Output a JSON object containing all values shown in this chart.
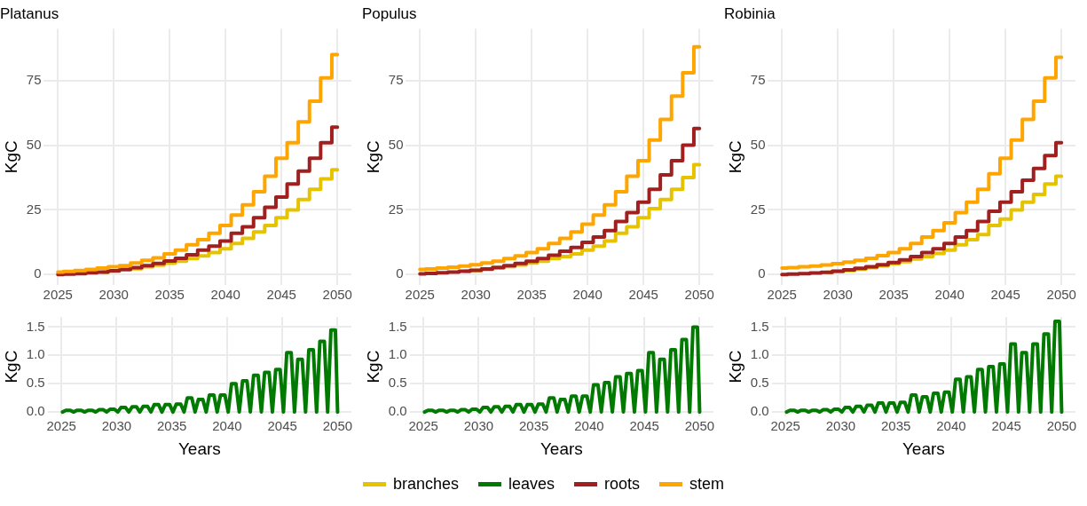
{
  "chart_data": [
    {
      "type": "step",
      "title": "Platanus",
      "ylabel": "KgC",
      "x": [
        2025,
        2026,
        2027,
        2028,
        2029,
        2030,
        2031,
        2032,
        2033,
        2034,
        2035,
        2036,
        2037,
        2038,
        2039,
        2040,
        2041,
        2042,
        2043,
        2044,
        2045,
        2046,
        2047,
        2048,
        2049,
        2050
      ],
      "xlim": [
        2023.75,
        2051.25
      ],
      "xticks": [
        2025,
        2030,
        2035,
        2040,
        2045,
        2050
      ],
      "ylim": [
        -4,
        95
      ],
      "yticks": [
        0,
        25,
        50,
        75
      ],
      "grid": true,
      "legend": "bottom",
      "series": [
        {
          "name": "branches",
          "color": "#e6c300",
          "values": [
            null,
            null,
            null,
            null,
            1,
            1.3,
            1.8,
            2.3,
            3,
            3.6,
            4.4,
            5.2,
            6.2,
            7.2,
            8.5,
            10,
            12,
            14,
            16.5,
            19,
            22,
            25,
            29,
            33,
            37,
            40.5
          ]
        },
        {
          "name": "roots",
          "color": "#a02020",
          "values": [
            0,
            0.2,
            0.4,
            0.7,
            1,
            1.5,
            2,
            2.7,
            3.5,
            4.3,
            5.3,
            6.3,
            7.7,
            9.5,
            11,
            13,
            16,
            18.5,
            22,
            26,
            30,
            35,
            40,
            45,
            51,
            57
          ]
        },
        {
          "name": "stem",
          "color": "#ffa500",
          "values": [
            1,
            1.2,
            1.6,
            2,
            2.5,
            3,
            3.5,
            4.5,
            5.5,
            6.5,
            8,
            9.5,
            11.5,
            13.5,
            16,
            19,
            23,
            27,
            32,
            38,
            45,
            51,
            59,
            67,
            76,
            85
          ]
        }
      ]
    },
    {
      "type": "step",
      "title": "Populus",
      "ylabel": "KgC",
      "x": [
        2025,
        2026,
        2027,
        2028,
        2029,
        2030,
        2031,
        2032,
        2033,
        2034,
        2035,
        2036,
        2037,
        2038,
        2039,
        2040,
        2041,
        2042,
        2043,
        2044,
        2045,
        2046,
        2047,
        2048,
        2049,
        2050
      ],
      "xlim": [
        2023.75,
        2051.25
      ],
      "xticks": [
        2025,
        2030,
        2035,
        2040,
        2045,
        2050
      ],
      "ylim": [
        -4,
        95
      ],
      "yticks": [
        0,
        25,
        50,
        75
      ],
      "grid": true,
      "legend": "bottom",
      "series": [
        {
          "name": "branches",
          "color": "#e6c300",
          "values": [
            null,
            null,
            null,
            null,
            1.3,
            1.6,
            2,
            2.5,
            3.1,
            3.7,
            4.5,
            5.2,
            6.2,
            7,
            8,
            9.5,
            11,
            13,
            16,
            18.5,
            22,
            25.5,
            29,
            33,
            37.5,
            42.5
          ]
        },
        {
          "name": "roots",
          "color": "#a02020",
          "values": [
            0.3,
            0.5,
            0.7,
            1,
            1.3,
            1.7,
            2.2,
            2.8,
            3.5,
            4.3,
            5.2,
            6.2,
            7.5,
            9,
            10.5,
            12.5,
            14.5,
            17,
            20.5,
            24,
            28,
            33,
            38.5,
            44,
            50,
            56.5
          ]
        },
        {
          "name": "stem",
          "color": "#ffa500",
          "values": [
            2,
            2.2,
            2.5,
            2.9,
            3.3,
            3.8,
            4.5,
            5.2,
            6.2,
            7.2,
            8.5,
            10,
            12,
            14,
            16.5,
            19.5,
            23,
            27,
            32,
            38,
            44,
            52,
            60,
            69,
            78,
            88
          ]
        }
      ]
    },
    {
      "type": "step",
      "title": "Robinia",
      "ylabel": "KgC",
      "x": [
        2025,
        2026,
        2027,
        2028,
        2029,
        2030,
        2031,
        2032,
        2033,
        2034,
        2035,
        2036,
        2037,
        2038,
        2039,
        2040,
        2041,
        2042,
        2043,
        2044,
        2045,
        2046,
        2047,
        2048,
        2049,
        2050
      ],
      "xlim": [
        2023.75,
        2051.25
      ],
      "xticks": [
        2025,
        2030,
        2035,
        2040,
        2045,
        2050
      ],
      "ylim": [
        -4,
        95
      ],
      "yticks": [
        0,
        25,
        50,
        75
      ],
      "grid": true,
      "legend": "bottom",
      "series": [
        {
          "name": "branches",
          "color": "#e6c300",
          "values": [
            null,
            null,
            null,
            null,
            0.9,
            1.2,
            1.6,
            2.1,
            2.7,
            3.4,
            4.2,
            5,
            6,
            7,
            8.2,
            9.5,
            11.5,
            13.5,
            15.5,
            19,
            21.5,
            25,
            28,
            31,
            35,
            38
          ]
        },
        {
          "name": "roots",
          "color": "#a02020",
          "values": [
            0,
            0.2,
            0.4,
            0.6,
            0.9,
            1.3,
            1.8,
            2.4,
            3,
            3.8,
            4.7,
            5.7,
            7,
            8.5,
            10,
            12,
            14.5,
            17,
            20.5,
            24.5,
            28,
            32,
            36.5,
            41,
            46,
            51
          ]
        },
        {
          "name": "stem",
          "color": "#ffa500",
          "values": [
            2.5,
            2.7,
            3,
            3.3,
            3.7,
            4.2,
            4.8,
            5.5,
            6.3,
            7.3,
            8.5,
            10,
            12,
            14.5,
            17,
            20,
            24,
            28,
            33,
            39,
            45,
            52,
            60,
            67,
            76,
            84
          ]
        }
      ]
    },
    {
      "type": "line",
      "xlabel": "Years",
      "ylabel": "KgC",
      "x": [
        2025.1,
        2025.4,
        2025.8,
        2026.1,
        2026.4,
        2026.8,
        2027.1,
        2027.4,
        2027.8,
        2028.1,
        2028.4,
        2028.8,
        2029.1,
        2029.4,
        2029.8,
        2030.1,
        2030.4,
        2030.8,
        2031.1,
        2031.4,
        2031.8,
        2032.1,
        2032.4,
        2032.8,
        2033.1,
        2033.4,
        2033.8,
        2034.1,
        2034.4,
        2034.8,
        2035.1,
        2035.4,
        2035.8,
        2036.1,
        2036.4,
        2036.8,
        2037.1,
        2037.4,
        2037.8,
        2038.1,
        2038.4,
        2038.8,
        2039.1,
        2039.4,
        2039.8,
        2040.1,
        2040.4,
        2040.8,
        2041.1,
        2041.4,
        2041.8,
        2042.1,
        2042.4,
        2042.8,
        2043.1,
        2043.4,
        2043.8,
        2044.1,
        2044.4,
        2044.8,
        2045.1,
        2045.4,
        2045.8,
        2046.1,
        2046.4,
        2046.8,
        2047.1,
        2047.4,
        2047.8,
        2048.1,
        2048.4,
        2048.8,
        2049.1,
        2049.4,
        2049.8,
        2050
      ],
      "xlim": [
        2023.75,
        2051.25
      ],
      "xticks": [
        2025,
        2030,
        2035,
        2040,
        2045,
        2050
      ],
      "ylim": [
        -0.08,
        1.68
      ],
      "yticks": [
        {
          "value": 0,
          "label": "0.0"
        },
        {
          "value": 0.5,
          "label": "0.5"
        },
        {
          "value": 1,
          "label": "1.0"
        },
        {
          "value": 1.5,
          "label": "1.5"
        }
      ],
      "grid": true,
      "legend": "bottom",
      "series": [
        {
          "name": "leaves",
          "color": "#007a00",
          "values": [
            0,
            0.03,
            0.03,
            0,
            0.03,
            0.03,
            0,
            0.03,
            0.03,
            0,
            0.04,
            0.04,
            0,
            0.05,
            0.05,
            0,
            0.08,
            0.08,
            0,
            0.09,
            0.09,
            0,
            0.1,
            0.1,
            0,
            0.13,
            0.13,
            0,
            0.13,
            0.13,
            0,
            0.14,
            0.14,
            0,
            0.25,
            0.25,
            0,
            0.22,
            0.22,
            0,
            0.3,
            0.3,
            0,
            0.3,
            0.3,
            0,
            0.5,
            0.5,
            0,
            0.55,
            0.55,
            0,
            0.65,
            0.65,
            0,
            0.7,
            0.7,
            0,
            0.75,
            0.75,
            0,
            1.05,
            1.05,
            0,
            0.93,
            0.93,
            0,
            1.1,
            1.1,
            0,
            1.25,
            1.25,
            0,
            1.45,
            1.45,
            0
          ]
        }
      ]
    },
    {
      "type": "line",
      "xlabel": "Years",
      "ylabel": "KgC",
      "x": [
        2025.1,
        2025.4,
        2025.8,
        2026.1,
        2026.4,
        2026.8,
        2027.1,
        2027.4,
        2027.8,
        2028.1,
        2028.4,
        2028.8,
        2029.1,
        2029.4,
        2029.8,
        2030.1,
        2030.4,
        2030.8,
        2031.1,
        2031.4,
        2031.8,
        2032.1,
        2032.4,
        2032.8,
        2033.1,
        2033.4,
        2033.8,
        2034.1,
        2034.4,
        2034.8,
        2035.1,
        2035.4,
        2035.8,
        2036.1,
        2036.4,
        2036.8,
        2037.1,
        2037.4,
        2037.8,
        2038.1,
        2038.4,
        2038.8,
        2039.1,
        2039.4,
        2039.8,
        2040.1,
        2040.4,
        2040.8,
        2041.1,
        2041.4,
        2041.8,
        2042.1,
        2042.4,
        2042.8,
        2043.1,
        2043.4,
        2043.8,
        2044.1,
        2044.4,
        2044.8,
        2045.1,
        2045.4,
        2045.8,
        2046.1,
        2046.4,
        2046.8,
        2047.1,
        2047.4,
        2047.8,
        2048.1,
        2048.4,
        2048.8,
        2049.1,
        2049.4,
        2049.8,
        2050
      ],
      "xlim": [
        2023.75,
        2051.25
      ],
      "xticks": [
        2025,
        2030,
        2035,
        2040,
        2045,
        2050
      ],
      "ylim": [
        -0.08,
        1.68
      ],
      "yticks": [
        {
          "value": 0,
          "label": "0.0"
        },
        {
          "value": 0.5,
          "label": "0.5"
        },
        {
          "value": 1,
          "label": "1.0"
        },
        {
          "value": 1.5,
          "label": "1.5"
        }
      ],
      "grid": true,
      "legend": "bottom",
      "series": [
        {
          "name": "leaves",
          "color": "#007a00",
          "values": [
            0,
            0.03,
            0.03,
            0,
            0.03,
            0.03,
            0,
            0.03,
            0.03,
            0,
            0.04,
            0.04,
            0,
            0.05,
            0.05,
            0,
            0.08,
            0.08,
            0,
            0.09,
            0.09,
            0,
            0.1,
            0.1,
            0,
            0.13,
            0.13,
            0,
            0.13,
            0.13,
            0,
            0.14,
            0.14,
            0,
            0.25,
            0.25,
            0,
            0.22,
            0.22,
            0,
            0.28,
            0.28,
            0,
            0.28,
            0.28,
            0,
            0.48,
            0.48,
            0,
            0.52,
            0.52,
            0,
            0.62,
            0.62,
            0,
            0.68,
            0.68,
            0,
            0.73,
            0.73,
            0,
            1.05,
            1.05,
            0,
            0.93,
            0.93,
            0,
            1.1,
            1.1,
            0,
            1.28,
            1.28,
            0,
            1.5,
            1.5,
            0
          ]
        }
      ]
    },
    {
      "type": "line",
      "xlabel": "Years",
      "ylabel": "KgC",
      "x": [
        2025.1,
        2025.4,
        2025.8,
        2026.1,
        2026.4,
        2026.8,
        2027.1,
        2027.4,
        2027.8,
        2028.1,
        2028.4,
        2028.8,
        2029.1,
        2029.4,
        2029.8,
        2030.1,
        2030.4,
        2030.8,
        2031.1,
        2031.4,
        2031.8,
        2032.1,
        2032.4,
        2032.8,
        2033.1,
        2033.4,
        2033.8,
        2034.1,
        2034.4,
        2034.8,
        2035.1,
        2035.4,
        2035.8,
        2036.1,
        2036.4,
        2036.8,
        2037.1,
        2037.4,
        2037.8,
        2038.1,
        2038.4,
        2038.8,
        2039.1,
        2039.4,
        2039.8,
        2040.1,
        2040.4,
        2040.8,
        2041.1,
        2041.4,
        2041.8,
        2042.1,
        2042.4,
        2042.8,
        2043.1,
        2043.4,
        2043.8,
        2044.1,
        2044.4,
        2044.8,
        2045.1,
        2045.4,
        2045.8,
        2046.1,
        2046.4,
        2046.8,
        2047.1,
        2047.4,
        2047.8,
        2048.1,
        2048.4,
        2048.8,
        2049.1,
        2049.4,
        2049.8,
        2050
      ],
      "xlim": [
        2023.75,
        2051.25
      ],
      "xticks": [
        2025,
        2030,
        2035,
        2040,
        2045,
        2050
      ],
      "ylim": [
        -0.08,
        1.68
      ],
      "yticks": [
        {
          "value": 0,
          "label": "0.0"
        },
        {
          "value": 0.5,
          "label": "0.5"
        },
        {
          "value": 1,
          "label": "1.0"
        },
        {
          "value": 1.5,
          "label": "1.5"
        }
      ],
      "grid": true,
      "legend": "bottom",
      "series": [
        {
          "name": "leaves",
          "color": "#007a00",
          "values": [
            0,
            0.03,
            0.03,
            0,
            0.03,
            0.03,
            0,
            0.03,
            0.03,
            0,
            0.04,
            0.04,
            0,
            0.05,
            0.05,
            0,
            0.08,
            0.08,
            0,
            0.1,
            0.1,
            0,
            0.12,
            0.12,
            0,
            0.16,
            0.16,
            0,
            0.16,
            0.16,
            0,
            0.17,
            0.17,
            0,
            0.3,
            0.3,
            0,
            0.27,
            0.27,
            0,
            0.33,
            0.33,
            0,
            0.35,
            0.35,
            0,
            0.58,
            0.58,
            0,
            0.62,
            0.62,
            0,
            0.75,
            0.75,
            0,
            0.8,
            0.8,
            0,
            0.85,
            0.85,
            0,
            1.2,
            1.2,
            0,
            1.05,
            1.05,
            0,
            1.2,
            1.2,
            0,
            1.38,
            1.38,
            0,
            1.6,
            1.6,
            0
          ]
        }
      ]
    }
  ]
}
